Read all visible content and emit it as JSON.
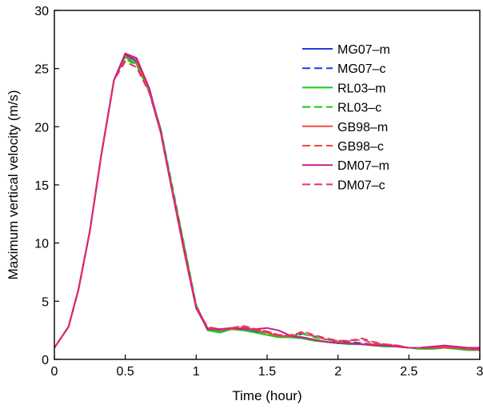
{
  "chart_data": {
    "type": "line",
    "title": "",
    "xlabel": "Time (hour)",
    "ylabel": "Maximum vertical velocity (m/s)",
    "xlim": [
      0,
      3
    ],
    "ylim": [
      0,
      30
    ],
    "xticks": [
      0,
      0.5,
      1,
      1.5,
      2,
      2.5,
      3
    ],
    "xtick_labels": [
      "0",
      "0.5",
      "1",
      "1.5",
      "2",
      "2.5",
      "3"
    ],
    "yticks": [
      0,
      5,
      10,
      15,
      20,
      25,
      30
    ],
    "ytick_labels": [
      "0",
      "5",
      "10",
      "15",
      "20",
      "25",
      "30"
    ],
    "grid": false,
    "legend_position": "top-right",
    "x": [
      0,
      0.1,
      0.17,
      0.25,
      0.33,
      0.42,
      0.5,
      0.58,
      0.67,
      0.75,
      0.83,
      0.92,
      1.0,
      1.08,
      1.17,
      1.25,
      1.33,
      1.42,
      1.5,
      1.58,
      1.67,
      1.75,
      1.83,
      1.92,
      2.0,
      2.08,
      2.17,
      2.25,
      2.33,
      2.42,
      2.5,
      2.58,
      2.67,
      2.75,
      2.83,
      2.92,
      3.0
    ],
    "series": [
      {
        "name": "MG07–m",
        "color": "#1f3fd6",
        "dash": "solid",
        "values": [
          1.0,
          2.8,
          6.0,
          11.0,
          17.5,
          24.0,
          26.2,
          25.6,
          23.0,
          19.5,
          14.5,
          9.0,
          4.5,
          2.6,
          2.5,
          2.6,
          2.6,
          2.4,
          2.3,
          2.0,
          1.9,
          1.8,
          1.7,
          1.5,
          1.4,
          1.4,
          1.3,
          1.3,
          1.2,
          1.1,
          1.0,
          1.0,
          1.1,
          1.1,
          1.0,
          0.9,
          0.9
        ]
      },
      {
        "name": "MG07–c",
        "color": "#1f3fd6",
        "dash": "dashed",
        "values": [
          1.0,
          2.8,
          6.0,
          11.0,
          17.5,
          24.0,
          26.0,
          25.4,
          23.0,
          19.5,
          14.5,
          9.2,
          4.6,
          2.7,
          2.5,
          2.6,
          2.7,
          2.5,
          2.3,
          2.0,
          1.9,
          2.2,
          2.0,
          1.7,
          1.5,
          1.5,
          1.4,
          1.3,
          1.2,
          1.1,
          1.0,
          1.0,
          1.0,
          1.1,
          1.0,
          0.9,
          0.8
        ]
      },
      {
        "name": "RL03–m",
        "color": "#18c918",
        "dash": "solid",
        "values": [
          1.0,
          2.8,
          6.0,
          11.0,
          17.5,
          24.0,
          26.0,
          25.4,
          23.0,
          19.8,
          14.8,
          9.5,
          4.6,
          2.5,
          2.3,
          2.6,
          2.5,
          2.3,
          2.1,
          1.9,
          1.9,
          1.8,
          1.6,
          1.5,
          1.4,
          1.3,
          1.3,
          1.2,
          1.1,
          1.1,
          1.0,
          0.9,
          0.9,
          1.0,
          0.9,
          0.8,
          0.8
        ]
      },
      {
        "name": "RL03–c",
        "color": "#18c918",
        "dash": "dashed",
        "values": [
          1.0,
          2.8,
          6.0,
          11.0,
          17.5,
          24.0,
          25.8,
          25.3,
          23.0,
          19.8,
          15.0,
          9.6,
          4.7,
          2.6,
          2.4,
          2.6,
          2.6,
          2.5,
          2.2,
          2.0,
          2.0,
          2.2,
          1.9,
          1.7,
          1.5,
          1.4,
          1.3,
          1.2,
          1.2,
          1.1,
          1.0,
          0.9,
          0.9,
          1.0,
          0.9,
          0.8,
          0.8
        ]
      },
      {
        "name": "GB98–m",
        "color": "#f04a3a",
        "dash": "solid",
        "values": [
          1.0,
          2.8,
          6.0,
          11.0,
          17.5,
          24.0,
          26.3,
          25.8,
          23.2,
          19.5,
          14.5,
          9.0,
          4.4,
          2.7,
          2.6,
          2.6,
          2.7,
          2.5,
          2.3,
          2.0,
          2.0,
          1.9,
          1.7,
          1.5,
          1.4,
          1.4,
          1.3,
          1.3,
          1.2,
          1.1,
          1.0,
          1.0,
          1.0,
          1.0,
          1.0,
          0.9,
          0.9
        ]
      },
      {
        "name": "GB98–c",
        "color": "#f04a3a",
        "dash": "dashed",
        "values": [
          1.0,
          2.8,
          6.0,
          11.0,
          17.5,
          24.0,
          26.1,
          25.5,
          23.1,
          19.6,
          14.6,
          9.1,
          4.5,
          2.8,
          2.6,
          2.7,
          2.9,
          2.6,
          2.4,
          2.1,
          2.1,
          2.3,
          2.0,
          1.7,
          1.6,
          1.6,
          1.7,
          1.4,
          1.3,
          1.2,
          1.0,
          1.0,
          1.0,
          1.1,
          1.0,
          0.9,
          0.8
        ]
      },
      {
        "name": "DM07–m",
        "color": "#c81e8c",
        "dash": "solid",
        "values": [
          1.0,
          2.8,
          6.0,
          11.0,
          17.5,
          24.0,
          26.3,
          25.9,
          23.3,
          19.6,
          14.6,
          9.1,
          4.4,
          2.6,
          2.6,
          2.7,
          2.6,
          2.6,
          2.7,
          2.5,
          2.0,
          1.9,
          1.7,
          1.5,
          1.4,
          1.4,
          1.3,
          1.2,
          1.2,
          1.1,
          1.0,
          1.0,
          1.1,
          1.2,
          1.1,
          1.0,
          1.0
        ]
      },
      {
        "name": "DM07–c",
        "color": "#ee2b70",
        "dash": "dashed",
        "values": [
          1.0,
          2.8,
          6.0,
          11.0,
          17.5,
          24.0,
          25.6,
          25.1,
          22.9,
          19.5,
          14.7,
          9.3,
          4.6,
          2.7,
          2.5,
          2.7,
          2.8,
          2.6,
          2.4,
          2.1,
          2.0,
          2.4,
          2.1,
          1.8,
          1.6,
          1.6,
          1.8,
          1.5,
          1.3,
          1.2,
          1.0,
          1.0,
          1.0,
          1.1,
          1.0,
          0.9,
          0.8
        ]
      }
    ]
  }
}
